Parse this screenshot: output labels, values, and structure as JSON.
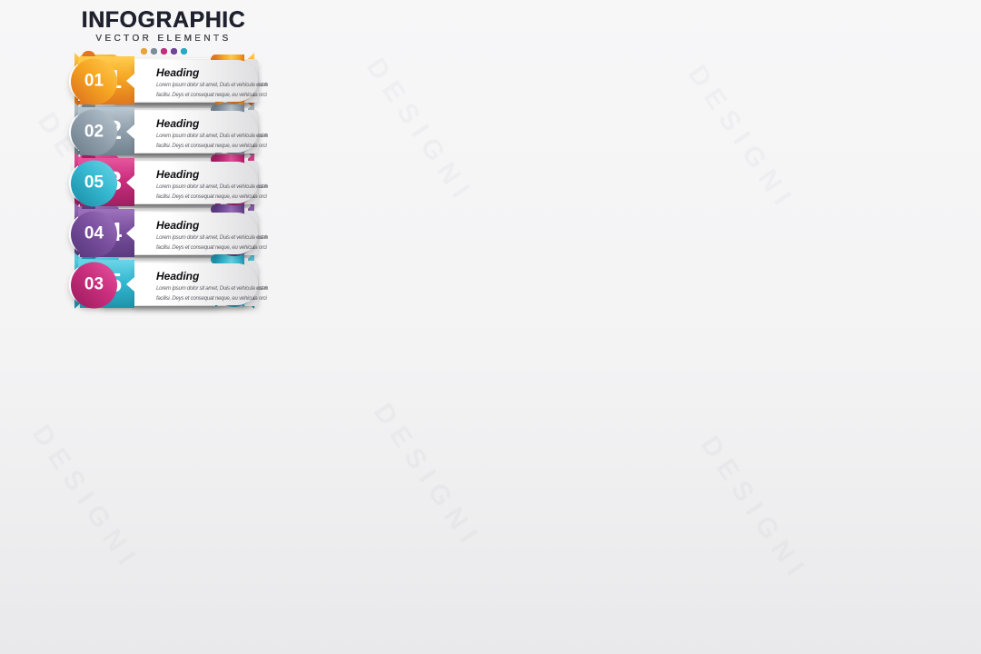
{
  "page": {
    "background": "#f3f3f4"
  },
  "watermark": {
    "text": "DESIGNI"
  },
  "shared": {
    "title": "INFOGRAPHIC",
    "subtitle": "VECTOR ELEMENTS",
    "heading": "Heading",
    "body_line1": "Lorem ipsum dolor sit amet, Duis et vehicula est nassah",
    "body_line2": "facilisi. Deys et consequat neque, eu vehicula orci."
  },
  "palette": {
    "orange": {
      "light": "#FFC94B",
      "base": "#F5A623",
      "dark": "#E0771E"
    },
    "gray": {
      "light": "#B7C4CD",
      "base": "#93A2AE",
      "dark": "#71828E"
    },
    "magenta": {
      "light": "#E3529B",
      "base": "#CA2E7D",
      "dark": "#A01F61"
    },
    "purple": {
      "light": "#9B70BA",
      "base": "#7A509F",
      "dark": "#5B3A80"
    },
    "cyan": {
      "light": "#67D3E5",
      "base": "#35B9D1",
      "dark": "#1E93AB"
    }
  },
  "dots": [
    "#E8A33D",
    "#7E8C99",
    "#C12F7D",
    "#6F4596",
    "#27A9BF"
  ],
  "panels": [
    {
      "style": "folded-banner",
      "items": [
        {
          "number": "01",
          "color": "orange"
        },
        {
          "number": "02",
          "color": "gray"
        },
        {
          "number": "03",
          "color": "magenta"
        },
        {
          "number": "04",
          "color": "purple"
        },
        {
          "number": "05",
          "color": "cyan"
        }
      ]
    },
    {
      "style": "bookmark-ribbon-right",
      "items": [
        {
          "number": "01",
          "color": "orange"
        },
        {
          "number": "02",
          "color": "gray"
        },
        {
          "number": "03",
          "color": "magenta"
        },
        {
          "number": "04",
          "color": "purple"
        },
        {
          "number": "05",
          "color": "cyan"
        }
      ]
    },
    {
      "style": "teardrop-badge-left",
      "items": [
        {
          "number": "01",
          "color": "orange"
        },
        {
          "number": "02",
          "color": "gray"
        },
        {
          "number": "03",
          "color": "magenta"
        },
        {
          "number": "04",
          "color": "purple"
        },
        {
          "number": "05",
          "color": "cyan"
        }
      ]
    },
    {
      "style": "big-square-number",
      "items": [
        {
          "number": "01",
          "color": "orange"
        },
        {
          "number": "02",
          "color": "gray"
        },
        {
          "number": "03",
          "color": "magenta"
        },
        {
          "number": "04",
          "color": "purple"
        },
        {
          "number": "05",
          "color": "cyan"
        }
      ]
    },
    {
      "style": "pill-circle-right",
      "items": [
        {
          "number": "01",
          "color": "orange"
        },
        {
          "number": "02",
          "color": "gray"
        },
        {
          "number": "03",
          "color": "magenta"
        },
        {
          "number": "04",
          "color": "purple"
        },
        {
          "number": "05",
          "color": "cyan"
        }
      ]
    },
    {
      "style": "pill-circle-left",
      "items": [
        {
          "number": "01",
          "color": "orange"
        },
        {
          "number": "02",
          "color": "gray"
        },
        {
          "number": "05",
          "color": "cyan"
        },
        {
          "number": "04",
          "color": "purple"
        },
        {
          "number": "03",
          "color": "magenta"
        }
      ]
    }
  ]
}
